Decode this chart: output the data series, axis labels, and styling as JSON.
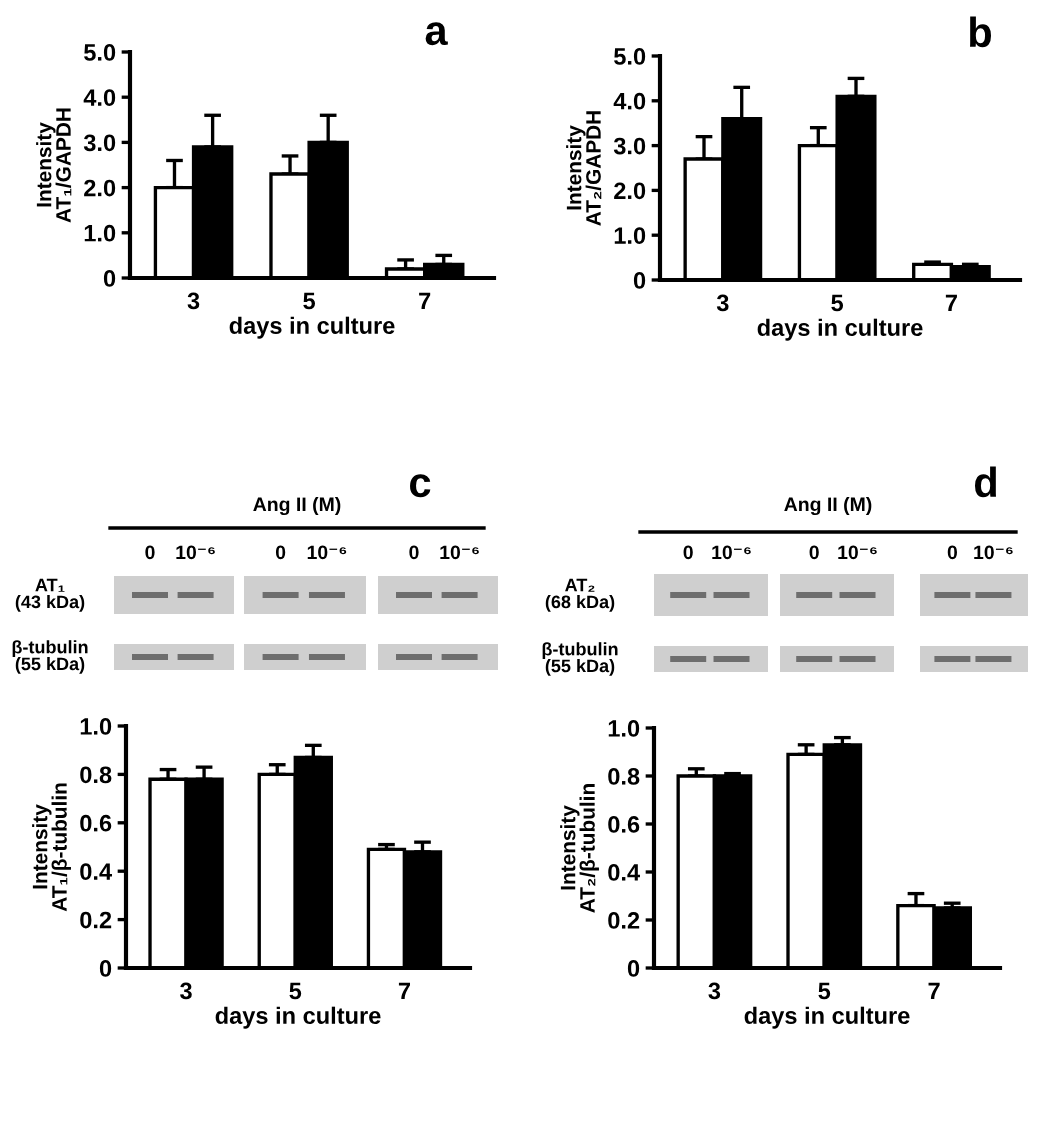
{
  "chart_data": [
    {
      "type": "bar",
      "title": "a",
      "xlabel": "days in culture",
      "ylabel": "Intensity\nAT₁/GAPDH",
      "categories": [
        "3",
        "5",
        "7"
      ],
      "ylim": [
        0,
        5
      ],
      "yticks": [
        0,
        {
          "value": 1,
          "label": "1.0"
        },
        {
          "value": 2,
          "label": "2.0"
        },
        {
          "value": 3,
          "label": "3.0"
        },
        {
          "value": 4,
          "label": "4.0"
        },
        {
          "value": 5,
          "label": "5.0"
        }
      ],
      "series": [
        {
          "color": "#ffffff",
          "values": [
            2.0,
            2.3,
            0.2
          ],
          "errors": [
            [
              2.0,
              2.6
            ],
            [
              2.3,
              2.7
            ],
            [
              0.2,
              0.4
            ]
          ]
        },
        {
          "color": "#000000",
          "values": [
            2.9,
            3.0,
            0.3
          ],
          "errors": [
            [
              2.9,
              3.6
            ],
            [
              3.0,
              3.6
            ],
            [
              0.3,
              0.5
            ]
          ]
        }
      ]
    },
    {
      "type": "bar",
      "title": "b",
      "xlabel": "days in culture",
      "ylabel": "Intensity\nAT₂/GAPDH",
      "categories": [
        "3",
        "5",
        "7"
      ],
      "ylim": [
        0,
        5
      ],
      "yticks": [
        0,
        {
          "value": 1,
          "label": "1.0"
        },
        {
          "value": 2,
          "label": "2.0"
        },
        {
          "value": 3,
          "label": "3.0"
        },
        {
          "value": 4,
          "label": "4.0"
        },
        {
          "value": 5,
          "label": "5.0"
        }
      ],
      "series": [
        {
          "color": "#ffffff",
          "values": [
            2.7,
            3.0,
            0.35
          ],
          "errors": [
            [
              2.7,
              3.2
            ],
            [
              3.0,
              3.4
            ],
            [
              0.35,
              0.4
            ]
          ]
        },
        {
          "color": "#000000",
          "values": [
            3.6,
            4.1,
            0.3
          ],
          "errors": [
            [
              3.6,
              4.3
            ],
            [
              4.1,
              4.5
            ],
            [
              0.3,
              0.35
            ]
          ]
        }
      ]
    },
    {
      "type": "bar",
      "title": "c",
      "xlabel": "days in culture",
      "ylabel": "Intensity\nAT₁/β-tubulin",
      "categories": [
        "3",
        "5",
        "7"
      ],
      "ylim": [
        0,
        1
      ],
      "yticks": [
        0,
        0.2,
        0.4,
        0.6,
        0.8,
        {
          "value": 1,
          "label": "1.0"
        }
      ],
      "series": [
        {
          "color": "#ffffff",
          "values": [
            0.78,
            0.8,
            0.49
          ],
          "errors": [
            [
              0.78,
              0.82
            ],
            [
              0.8,
              0.84
            ],
            [
              0.49,
              0.51
            ]
          ]
        },
        {
          "color": "#000000",
          "values": [
            0.78,
            0.87,
            0.48
          ],
          "errors": [
            [
              0.78,
              0.83
            ],
            [
              0.87,
              0.92
            ],
            [
              0.48,
              0.52
            ]
          ]
        }
      ],
      "annotations": [
        "Ang II (M)",
        "0",
        "10⁻⁶",
        "0",
        "10⁻⁶",
        "0",
        "10⁻⁶",
        "AT₁\n(43 kDa)",
        "β-tubulin\n(55 kDa)"
      ]
    },
    {
      "type": "bar",
      "title": "d",
      "xlabel": "days in culture",
      "ylabel": "Intensity\nAT₂/β-tubulin",
      "categories": [
        "3",
        "5",
        "7"
      ],
      "ylim": [
        0,
        1
      ],
      "yticks": [
        0,
        0.2,
        0.4,
        0.6,
        0.8,
        {
          "value": 1,
          "label": "1.0"
        }
      ],
      "series": [
        {
          "color": "#ffffff",
          "values": [
            0.8,
            0.89,
            0.26
          ],
          "errors": [
            [
              0.8,
              0.83
            ],
            [
              0.89,
              0.93
            ],
            [
              0.26,
              0.31
            ]
          ]
        },
        {
          "color": "#000000",
          "values": [
            0.8,
            0.93,
            0.25
          ],
          "errors": [
            [
              0.8,
              0.81
            ],
            [
              0.93,
              0.96
            ],
            [
              0.25,
              0.27
            ]
          ]
        }
      ],
      "annotations": [
        "Ang II (M)",
        "0",
        "10⁻⁶",
        "0",
        "10⁻⁶",
        "0",
        "10⁻⁶",
        "AT₂\n(68 kDa)",
        "β-tubulin\n(55 kDa)"
      ]
    }
  ]
}
